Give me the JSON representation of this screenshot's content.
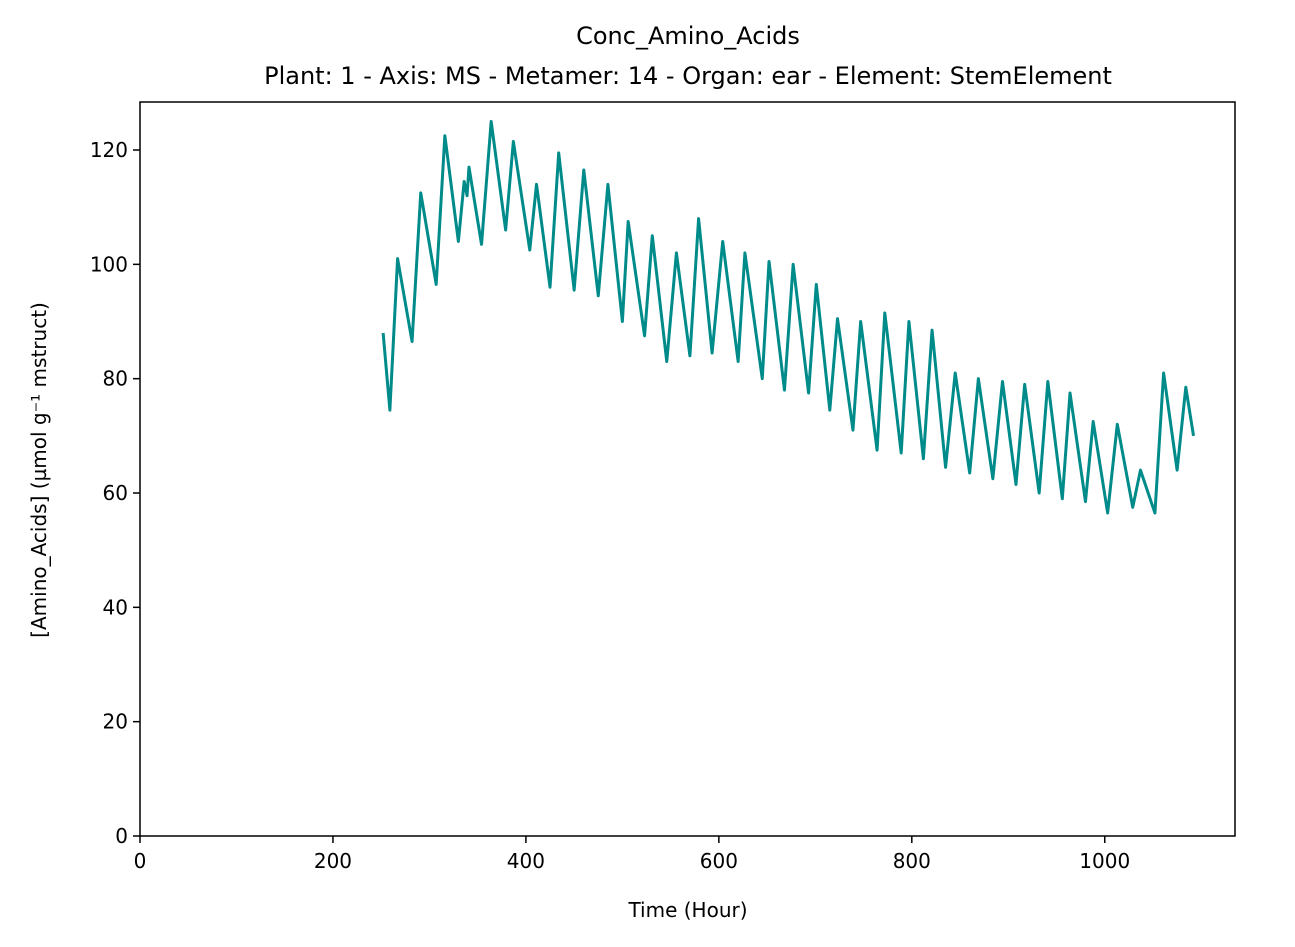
{
  "chart_data": {
    "type": "line",
    "title": "Conc_Amino_Acids",
    "subtitle": "Plant: 1 - Axis: MS - Metamer: 14 - Organ: ear - Element: StemElement",
    "x_label": "Time (Hour)",
    "y_label": "[Amino_Acids] (µmol g⁻¹ mstruct)",
    "xlim": [
      0,
      1135
    ],
    "ylim": [
      0,
      128.4
    ],
    "xticks": [
      0,
      200,
      400,
      600,
      800,
      1000
    ],
    "yticks": [
      0,
      20,
      40,
      60,
      80,
      100,
      120
    ],
    "series": [
      {
        "color": "#008b8b",
        "x": [
          252,
          259,
          267,
          282,
          291,
          307,
          316,
          330,
          336,
          339,
          341,
          354,
          364,
          379,
          387,
          404,
          411,
          425,
          434,
          450,
          460,
          475,
          485,
          500,
          506,
          523,
          531,
          546,
          556,
          570,
          579,
          593,
          604,
          620,
          627,
          645,
          652,
          668,
          677,
          693,
          701,
          715,
          723,
          739,
          747,
          764,
          772,
          789,
          797,
          812,
          821,
          835,
          845,
          860,
          869,
          884,
          894,
          908,
          917,
          932,
          941,
          956,
          964,
          980,
          988,
          1003,
          1013,
          1029,
          1037,
          1052,
          1061,
          1075,
          1084,
          1092
        ],
        "values": [
          88,
          74.5,
          101,
          86.5,
          112.5,
          96.5,
          122.5,
          104,
          114.5,
          112,
          117,
          103.5,
          125,
          106,
          121.5,
          102.5,
          114,
          96,
          119.5,
          95.5,
          116.5,
          94.5,
          114,
          90,
          107.5,
          87.5,
          105,
          83,
          102,
          84,
          108,
          84.5,
          104,
          83,
          102,
          80,
          100.5,
          78,
          100,
          77.5,
          96.5,
          74.5,
          90.5,
          71,
          90,
          67.5,
          91.5,
          67,
          90,
          66,
          88.5,
          64.5,
          81,
          63.5,
          80,
          62.5,
          79.5,
          61.5,
          79,
          60,
          79.5,
          59,
          77.5,
          58.5,
          72.5,
          56.5,
          72,
          57.5,
          64,
          56.5,
          81,
          64,
          78.5,
          70
        ]
      }
    ]
  }
}
